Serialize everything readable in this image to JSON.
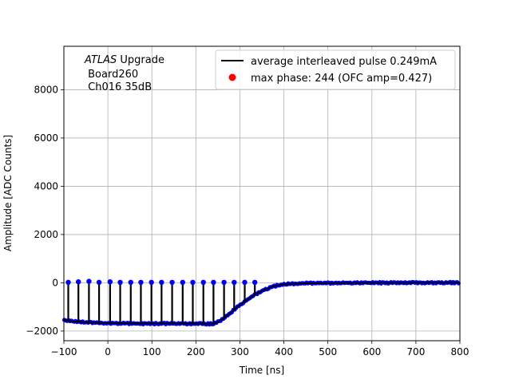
{
  "chart_data": {
    "type": "scatter",
    "title": "",
    "xlabel": "Time [ns]",
    "ylabel": "Amplitude [ADC Counts]",
    "xlim": [
      -100,
      800
    ],
    "ylim": [
      -2400,
      9800
    ],
    "xticks": [
      -100,
      0,
      100,
      200,
      300,
      400,
      500,
      600,
      700,
      800
    ],
    "yticks": [
      -2000,
      0,
      2000,
      4000,
      6000,
      8000
    ],
    "grid": true,
    "legend_position": "top-right",
    "annotation": {
      "experiment": "ATLAS",
      "line1_suffix": " Upgrade",
      "line2": " Board260",
      "line3": " Ch016 35dB"
    },
    "series": [
      {
        "name": "average interleaved pulse 0.249mA",
        "kind": "line",
        "color": "#000000",
        "x": [
          -100,
          -75,
          -50,
          -25,
          0,
          25,
          50,
          75,
          100,
          125,
          150,
          175,
          200,
          225,
          240,
          250,
          260,
          275,
          300,
          325,
          350,
          375,
          400,
          450,
          500,
          550,
          600,
          650,
          700,
          750,
          800
        ],
        "y": [
          -1550,
          -1610,
          -1640,
          -1660,
          -1670,
          -1680,
          -1685,
          -1690,
          -1690,
          -1690,
          -1690,
          -1690,
          -1695,
          -1700,
          -1700,
          -1620,
          -1520,
          -1300,
          -920,
          -600,
          -330,
          -150,
          -60,
          -20,
          -10,
          -5,
          0,
          0,
          5,
          5,
          5
        ]
      },
      {
        "name": "max phase: 244 (OFC amp=0.427)",
        "kind": "scatter",
        "color": "#ff0000",
        "x": [],
        "y": []
      }
    ],
    "samples": {
      "color": "#0000ff",
      "stem_color": "#000000",
      "high_x": [
        -90,
        -67,
        -43,
        -20,
        5,
        28,
        52,
        75,
        99,
        122,
        146,
        170,
        193,
        217,
        240,
        264,
        287,
        311,
        334
      ],
      "high_y": [
        20,
        40,
        60,
        20,
        40,
        20,
        20,
        20,
        20,
        20,
        20,
        20,
        20,
        20,
        20,
        20,
        20,
        20,
        20
      ]
    }
  }
}
